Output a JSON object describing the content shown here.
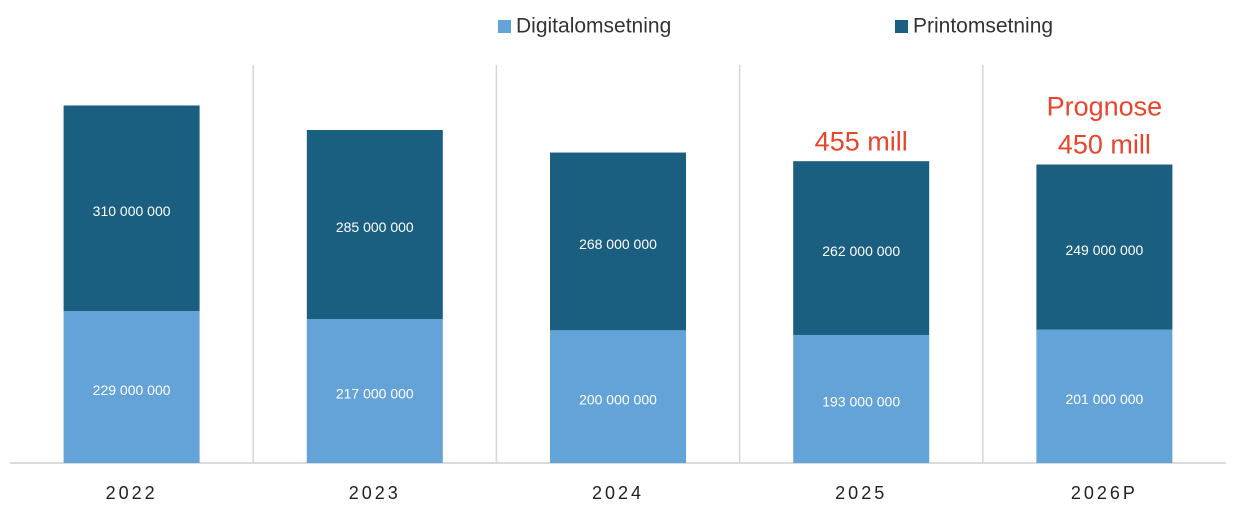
{
  "chart_data": {
    "type": "stacked_bar",
    "categories": [
      "2022",
      "2023",
      "2024",
      "2025",
      "2026P"
    ],
    "series": [
      {
        "name": "Digitalomsetning",
        "color": "#64a3d8",
        "values": [
          229000000,
          217000000,
          200000000,
          193000000,
          201000000
        ],
        "value_labels": [
          "229 000 000",
          "217 000 000",
          "200 000 000",
          "193 000 000",
          "201 000 000"
        ]
      },
      {
        "name": "Printomsetning",
        "color": "#1b5f80",
        "values": [
          310000000,
          285000000,
          268000000,
          262000000,
          249000000
        ],
        "value_labels": [
          "310 000 000",
          "285 000 000",
          "268 000 000",
          "262 000 000",
          "249 000 000"
        ]
      }
    ],
    "ylim": [
      0,
      600000000
    ],
    "annotations": [
      {
        "category": "2025",
        "lines": [
          "455 mill"
        ]
      },
      {
        "category": "2026P",
        "lines": [
          "Prognose",
          "450 mill"
        ]
      }
    ]
  }
}
